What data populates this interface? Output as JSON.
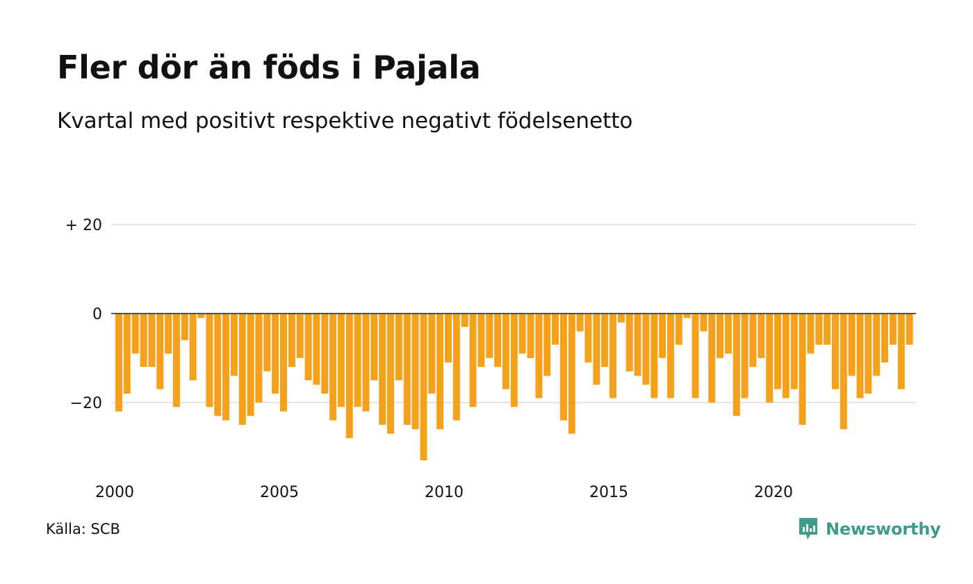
{
  "title": "Fler dör än föds i Pajala",
  "subtitle": "Kvartal med positivt respektive negativt födelsenetto",
  "source": "Källa: SCB",
  "logo": {
    "name": "Newsworthy",
    "color": "#3d9b8c",
    "icon": "newsworthy-logo-icon"
  },
  "chart_data": {
    "type": "bar",
    "bar_color": "#f5a11c",
    "ylim": [
      -35,
      30
    ],
    "y_ticks": [
      {
        "value": 20,
        "label": "+ 20"
      },
      {
        "value": 0,
        "label": "0"
      },
      {
        "value": -20,
        "label": "−20"
      }
    ],
    "x_range": [
      2000,
      2024.5
    ],
    "x_ticks": [
      {
        "value": 2000,
        "label": "2000"
      },
      {
        "value": 2005,
        "label": "2005"
      },
      {
        "value": 2010,
        "label": "2010"
      },
      {
        "value": 2015,
        "label": "2015"
      },
      {
        "value": 2020,
        "label": "2020"
      }
    ],
    "start_year": 2000,
    "start_quarter": 1,
    "values": [
      -22,
      -18,
      -9,
      -12,
      -12,
      -17,
      -9,
      -21,
      -6,
      -15,
      -1,
      -21,
      -23,
      -24,
      -14,
      -25,
      -23,
      -20,
      -13,
      -18,
      -22,
      -12,
      -10,
      -15,
      -16,
      -18,
      -24,
      -21,
      -28,
      -21,
      -22,
      -15,
      -25,
      -27,
      -15,
      -25,
      -26,
      -33,
      -18,
      -26,
      -11,
      -24,
      -3,
      -21,
      -12,
      -10,
      -12,
      -17,
      -21,
      -9,
      -10,
      -19,
      -14,
      -7,
      -24,
      -27,
      -4,
      -11,
      -16,
      -12,
      -19,
      -2,
      -13,
      -14,
      -16,
      -19,
      -10,
      -19,
      -7,
      -1,
      -19,
      -4,
      -20,
      -10,
      -9,
      -23,
      -19,
      -12,
      -10,
      -20,
      -17,
      -19,
      -17,
      -25,
      -9,
      -7,
      -7,
      -17,
      -26,
      -14,
      -19,
      -18,
      -14,
      -11,
      -7,
      -17,
      -7
    ]
  }
}
